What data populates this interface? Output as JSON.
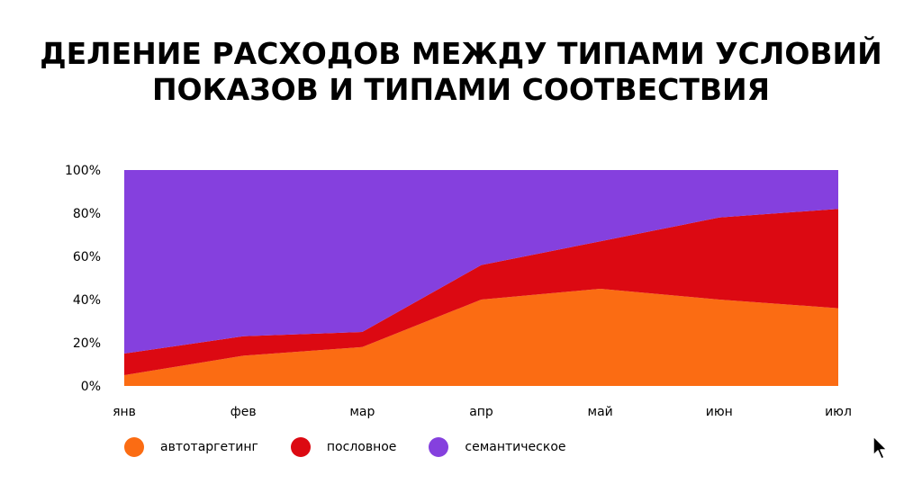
{
  "title_lines": [
    "ДЕЛЕНИЕ РАСХОДОВ МЕЖДУ ТИПАМИ УСЛОВИЙ",
    "ПОКАЗОВ И ТИПАМИ СООТВЕСТВИЯ"
  ],
  "colors": {
    "auto": "#fb6c13",
    "phrase": "#dc0912",
    "semantic": "#8540de",
    "text": "#000000"
  },
  "icons": {
    "cursor": "cursor-arrow-icon"
  },
  "chart_data": {
    "type": "area",
    "stacked": true,
    "percent": true,
    "title": "ДЕЛЕНИЕ РАСХОДОВ МЕЖДУ ТИПАМИ УСЛОВИЙ ПОКАЗОВ И ТИПАМИ СООТВЕСТВИЯ",
    "categories": [
      "янв",
      "фев",
      "мар",
      "апр",
      "май",
      "июн",
      "июл"
    ],
    "y_ticks": [
      "0%",
      "20%",
      "40%",
      "60%",
      "80%",
      "100%"
    ],
    "ylim": [
      0,
      100
    ],
    "legend_position": "bottom-left",
    "grid": false,
    "series": [
      {
        "name": "автотаргетинг",
        "values": [
          5,
          14,
          18,
          40,
          45,
          40,
          36
        ]
      },
      {
        "name": "пословное",
        "values": [
          10,
          9,
          7,
          16,
          22,
          38,
          46
        ]
      },
      {
        "name": "семантическое",
        "values": [
          85,
          77,
          75,
          44,
          33,
          22,
          18
        ]
      }
    ]
  }
}
